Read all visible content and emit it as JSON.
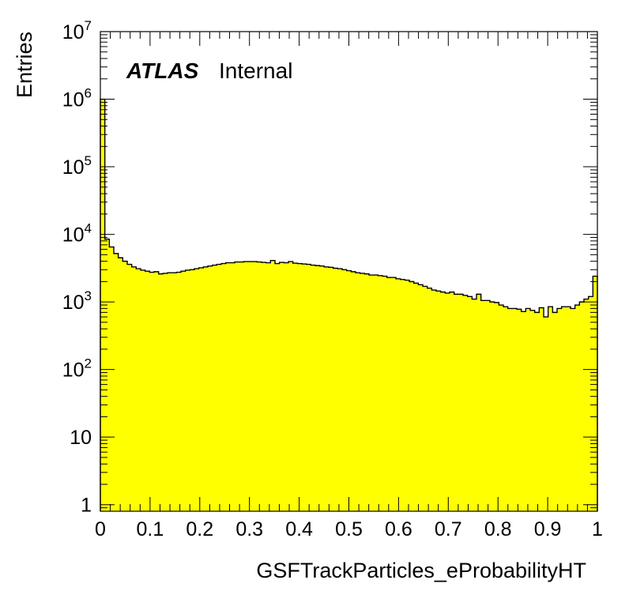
{
  "chart_data": {
    "type": "histogram",
    "xlabel": "GSFTrackParticles_eProbabilityHT",
    "ylabel": "Entries",
    "xlim": [
      0,
      1
    ],
    "ylim": [
      0.8,
      10000000
    ],
    "yscale": "log",
    "grid": false,
    "legend": "none",
    "fill_color": "#ffff00",
    "line_color": "#000000",
    "annotation": {
      "bold": "ATLAS",
      "normal": "Internal"
    },
    "x_ticks": [
      "0",
      "0.1",
      "0.2",
      "0.3",
      "0.4",
      "0.5",
      "0.6",
      "0.7",
      "0.8",
      "0.9",
      "1"
    ],
    "y_ticks": [
      {
        "value": 1,
        "base": "1",
        "exp": ""
      },
      {
        "value": 10,
        "base": "10",
        "exp": ""
      },
      {
        "value": 100,
        "base": "10",
        "exp": "2"
      },
      {
        "value": 1000,
        "base": "10",
        "exp": "3"
      },
      {
        "value": 10000,
        "base": "10",
        "exp": "4"
      },
      {
        "value": 100000,
        "base": "10",
        "exp": "5"
      },
      {
        "value": 1000000,
        "base": "10",
        "exp": "6"
      },
      {
        "value": 10000000,
        "base": "10",
        "exp": "7"
      }
    ],
    "bin_width": 0.01,
    "values": [
      1000000,
      8500,
      6500,
      5200,
      4500,
      4000,
      3600,
      3300,
      3100,
      2950,
      2850,
      2750,
      2800,
      2600,
      2650,
      2700,
      2700,
      2750,
      2850,
      2950,
      3000,
      3100,
      3200,
      3300,
      3400,
      3500,
      3600,
      3700,
      3800,
      3800,
      3900,
      3900,
      3950,
      3950,
      3950,
      3900,
      3850,
      3800,
      4100,
      3700,
      3850,
      3800,
      3950,
      3750,
      3700,
      3650,
      3600,
      3500,
      3450,
      3400,
      3300,
      3250,
      3150,
      3100,
      3000,
      2900,
      2800,
      2700,
      2650,
      2600,
      2500,
      2500,
      2450,
      2400,
      2300,
      2300,
      2200,
      2150,
      2100,
      2000,
      1900,
      1800,
      1700,
      1600,
      1500,
      1450,
      1400,
      1350,
      1400,
      1300,
      1300,
      1250,
      1200,
      1100,
      1300,
      1050,
      1050,
      1000,
      980,
      900,
      850,
      800,
      800,
      780,
      720,
      800,
      750,
      700,
      820,
      600,
      850,
      700,
      800,
      850,
      850,
      800,
      900,
      1000,
      1100,
      1200,
      2400
    ]
  }
}
